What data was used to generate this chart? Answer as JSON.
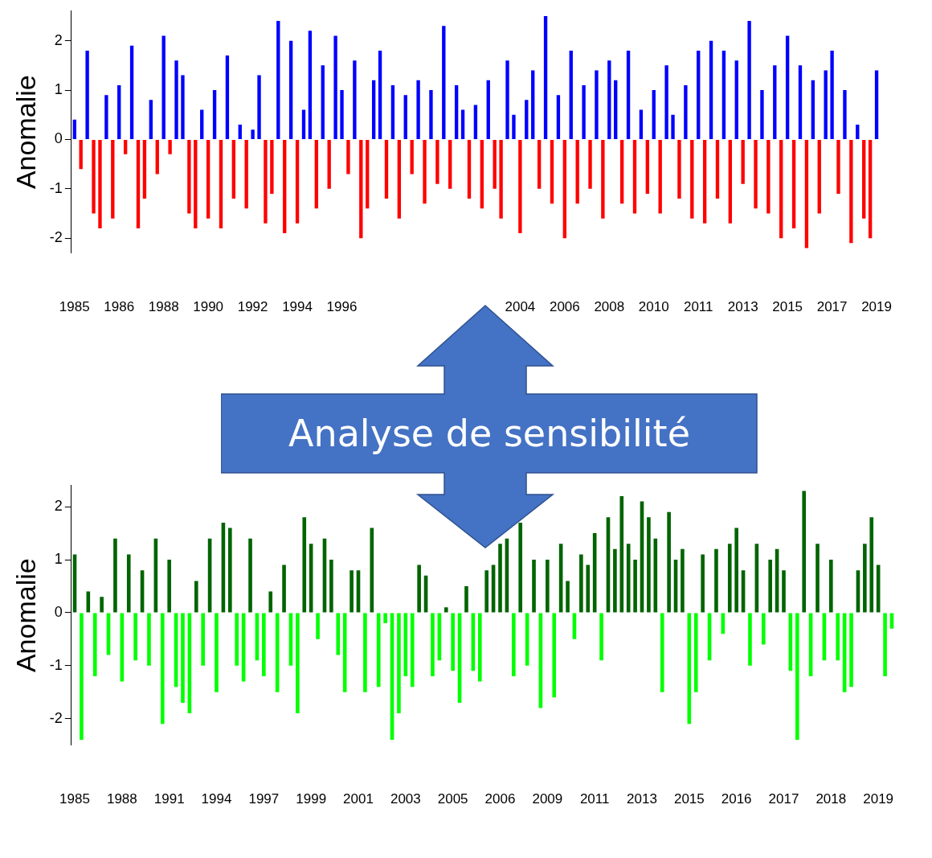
{
  "chart_data": [
    {
      "type": "bar",
      "ylabel": "Anomalie",
      "ylim": [
        -2.3,
        2.6
      ],
      "yticks": [
        -2,
        -1,
        0,
        1,
        2
      ],
      "legend": false,
      "annotations": [
        "Analyse de sensibilité"
      ],
      "categories": [
        "1985",
        null,
        null,
        null,
        null,
        null,
        null,
        "1986",
        null,
        null,
        null,
        null,
        null,
        null,
        "1988",
        null,
        null,
        null,
        null,
        null,
        null,
        "1990",
        null,
        null,
        null,
        null,
        null,
        null,
        "1992",
        null,
        null,
        null,
        null,
        null,
        null,
        "1994",
        null,
        null,
        null,
        null,
        null,
        null,
        "1996",
        null,
        null,
        null,
        null,
        null,
        null,
        null,
        null,
        null,
        null,
        null,
        null,
        null,
        null,
        null,
        null,
        null,
        null,
        null,
        null,
        null,
        null,
        null,
        null,
        null,
        null,
        null,
        "2004",
        null,
        null,
        null,
        null,
        null,
        null,
        "2006",
        null,
        null,
        null,
        null,
        null,
        null,
        "2008",
        null,
        null,
        null,
        null,
        null,
        null,
        "2010",
        null,
        null,
        null,
        null,
        null,
        null,
        "2011",
        null,
        null,
        null,
        null,
        null,
        null,
        "2013",
        null,
        null,
        null,
        null,
        null,
        null,
        "2015",
        null,
        null,
        null,
        null,
        null,
        null,
        "2017",
        null,
        null,
        null,
        null,
        null,
        null,
        "2019"
      ],
      "series": [
        {
          "color": "#0000ff",
          "values": [
            0.4,
            null,
            1.8,
            null,
            null,
            0.9,
            null,
            1.1,
            null,
            1.9,
            null,
            null,
            0.8,
            null,
            2.1,
            null,
            1.6,
            1.3,
            null,
            null,
            0.6,
            null,
            1.0,
            null,
            1.7,
            null,
            0.3,
            null,
            0.2,
            1.3,
            null,
            null,
            2.4,
            null,
            2.0,
            null,
            0.6,
            2.2,
            null,
            1.5,
            null,
            2.1,
            1.0,
            null,
            1.6,
            null,
            null,
            1.2,
            1.8,
            null,
            1.1,
            null,
            0.9,
            null,
            1.2,
            null,
            1.0,
            null,
            2.3,
            null,
            1.1,
            0.6,
            null,
            0.7,
            null,
            1.2,
            null,
            null,
            1.6,
            0.5,
            null,
            0.8,
            1.4,
            null,
            2.5,
            null,
            0.9,
            null,
            1.8,
            null,
            1.1,
            null,
            1.4,
            null,
            1.6,
            1.2,
            null,
            1.8,
            null,
            0.6,
            null,
            1.0,
            null,
            1.5,
            0.5,
            null,
            1.1,
            null,
            1.8,
            null,
            2.0,
            null,
            1.8,
            null,
            1.6,
            null,
            2.4,
            null,
            1.0,
            null,
            1.5,
            null,
            2.1,
            null,
            1.5,
            null,
            1.2,
            null,
            1.4,
            1.8,
            null,
            1.0,
            null,
            0.3,
            null,
            null,
            1.4
          ]
        },
        {
          "color": "#ff0000",
          "values": [
            null,
            -0.6,
            null,
            -1.5,
            -1.8,
            null,
            -1.6,
            null,
            -0.3,
            null,
            -1.8,
            -1.2,
            null,
            -0.7,
            null,
            -0.3,
            null,
            null,
            -1.5,
            -1.8,
            null,
            -1.6,
            null,
            -1.8,
            null,
            -1.2,
            null,
            -1.4,
            null,
            null,
            -1.7,
            -1.1,
            null,
            -1.9,
            null,
            -1.7,
            null,
            null,
            -1.4,
            null,
            -1.0,
            null,
            null,
            -0.7,
            null,
            -2.0,
            -1.4,
            null,
            null,
            -1.2,
            null,
            -1.6,
            null,
            -0.7,
            null,
            -1.3,
            null,
            -0.9,
            null,
            -1.0,
            null,
            null,
            -1.2,
            null,
            -1.4,
            null,
            -1.0,
            -1.6,
            null,
            null,
            -1.9,
            null,
            null,
            -1.0,
            null,
            -1.3,
            null,
            -2.0,
            null,
            -1.3,
            null,
            -1.0,
            null,
            -1.6,
            null,
            null,
            -1.3,
            null,
            -1.5,
            null,
            -1.1,
            null,
            -1.5,
            null,
            null,
            -1.2,
            null,
            -1.6,
            null,
            -1.7,
            null,
            -1.2,
            null,
            -1.7,
            null,
            -0.9,
            null,
            -1.4,
            null,
            -1.5,
            null,
            -2.0,
            null,
            -1.8,
            null,
            -2.2,
            null,
            -1.5,
            null,
            null,
            -1.1,
            null,
            -2.1,
            null,
            -1.6,
            -2.0,
            null
          ]
        }
      ]
    },
    {
      "type": "bar",
      "ylabel": "Anomalie",
      "ylim": [
        -2.5,
        2.4
      ],
      "yticks": [
        -2,
        -1,
        0,
        1,
        2
      ],
      "legend": false,
      "categories": [
        "1985",
        null,
        null,
        null,
        null,
        null,
        null,
        "1988",
        null,
        null,
        null,
        null,
        null,
        null,
        "1991",
        null,
        null,
        null,
        null,
        null,
        null,
        "1994",
        null,
        null,
        null,
        null,
        null,
        null,
        "1997",
        null,
        null,
        null,
        null,
        null,
        null,
        "1999",
        null,
        null,
        null,
        null,
        null,
        null,
        "2001",
        null,
        null,
        null,
        null,
        null,
        null,
        "2003",
        null,
        null,
        null,
        null,
        null,
        null,
        "2005",
        null,
        null,
        null,
        null,
        null,
        null,
        "2006",
        null,
        null,
        null,
        null,
        null,
        null,
        "2009",
        null,
        null,
        null,
        null,
        null,
        null,
        "2011",
        null,
        null,
        null,
        null,
        null,
        null,
        "2013",
        null,
        null,
        null,
        null,
        null,
        null,
        "2015",
        null,
        null,
        null,
        null,
        null,
        null,
        "2016",
        null,
        null,
        null,
        null,
        null,
        null,
        "2017",
        null,
        null,
        null,
        null,
        null,
        null,
        "2018",
        null,
        null,
        null,
        null,
        null,
        null,
        "2019",
        null,
        null
      ],
      "series": [
        {
          "color": "#006400",
          "values": [
            1.1,
            null,
            0.4,
            null,
            0.3,
            null,
            1.4,
            null,
            1.1,
            null,
            0.8,
            null,
            1.4,
            null,
            1.0,
            null,
            null,
            null,
            0.6,
            null,
            1.4,
            null,
            1.7,
            1.6,
            null,
            null,
            1.4,
            null,
            null,
            0.4,
            null,
            0.9,
            null,
            null,
            1.8,
            1.3,
            null,
            1.4,
            1.0,
            null,
            null,
            0.8,
            0.8,
            null,
            1.6,
            null,
            null,
            null,
            null,
            null,
            null,
            0.9,
            0.7,
            null,
            null,
            0.1,
            null,
            null,
            0.5,
            null,
            null,
            0.8,
            0.9,
            1.3,
            1.4,
            null,
            1.7,
            null,
            1.0,
            null,
            1.0,
            null,
            1.3,
            0.6,
            null,
            1.1,
            0.9,
            1.5,
            null,
            1.8,
            1.2,
            2.2,
            1.3,
            1.0,
            2.1,
            1.8,
            1.4,
            null,
            1.9,
            1.0,
            1.2,
            null,
            null,
            1.1,
            null,
            1.2,
            null,
            1.3,
            1.6,
            0.8,
            null,
            1.3,
            null,
            1.0,
            1.2,
            0.8,
            null,
            null,
            2.3,
            null,
            1.3,
            null,
            1.0,
            null,
            null,
            null,
            0.8,
            1.3,
            1.8,
            0.9,
            null,
            null
          ]
        },
        {
          "color": "#00ff00",
          "values": [
            null,
            -2.4,
            null,
            -1.2,
            null,
            -0.8,
            null,
            -1.3,
            null,
            -0.9,
            null,
            -1.0,
            null,
            -2.1,
            null,
            -1.4,
            -1.7,
            -1.9,
            null,
            -1.0,
            null,
            -1.5,
            null,
            null,
            -1.0,
            -1.3,
            null,
            -0.9,
            -1.2,
            null,
            -1.5,
            null,
            -1.0,
            -1.9,
            null,
            null,
            -0.5,
            null,
            null,
            -0.8,
            -1.5,
            null,
            null,
            -1.5,
            null,
            -1.4,
            -0.2,
            -2.4,
            -1.9,
            -1.2,
            -1.4,
            null,
            null,
            -1.2,
            -0.9,
            null,
            -1.1,
            -1.7,
            null,
            -1.1,
            -1.3,
            null,
            null,
            null,
            null,
            -1.2,
            null,
            -1.0,
            null,
            -1.8,
            null,
            -1.6,
            null,
            null,
            -0.5,
            null,
            null,
            null,
            -0.9,
            null,
            null,
            null,
            null,
            null,
            null,
            null,
            null,
            -1.5,
            null,
            null,
            null,
            -2.1,
            -1.5,
            null,
            -0.9,
            null,
            -0.4,
            null,
            null,
            null,
            -1.0,
            null,
            -0.6,
            null,
            null,
            null,
            -1.1,
            -2.4,
            null,
            -1.2,
            null,
            -0.9,
            null,
            -0.9,
            -1.5,
            -1.4,
            null,
            null,
            null,
            null,
            -1.2,
            -0.3
          ]
        }
      ]
    }
  ]
}
